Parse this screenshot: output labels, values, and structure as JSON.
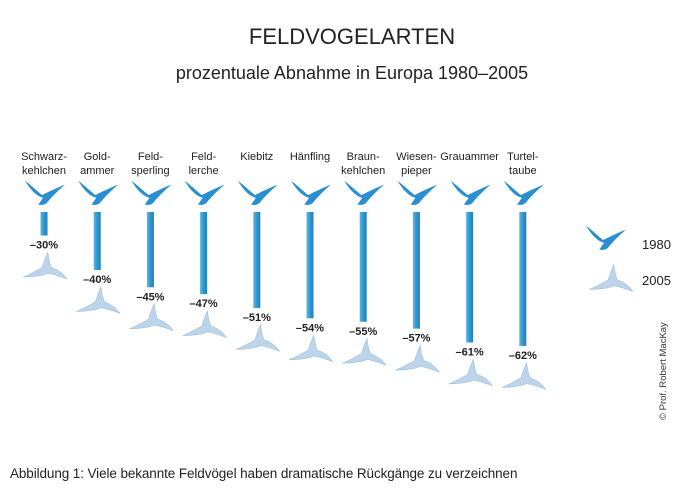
{
  "chart_data": {
    "type": "bar",
    "title": "FELDVOGELARTEN",
    "subtitle": "prozentuale Abnahme in Europa 1980–2005",
    "categories": [
      [
        "Schwarz-",
        "kehlchen"
      ],
      [
        "Gold-",
        "ammer"
      ],
      [
        "Feld-",
        "sperling"
      ],
      [
        "Feld-",
        "lerche"
      ],
      [
        "Kiebitz"
      ],
      [
        "Hänfling"
      ],
      [
        "Braun-",
        "kehlchen"
      ],
      [
        "Wiesen-",
        "pieper"
      ],
      [
        "Grauammer"
      ],
      [
        "Turtel-",
        "taube"
      ]
    ],
    "values": [
      -30,
      -40,
      -45,
      -47,
      -51,
      -54,
      -55,
      -57,
      -61,
      -62
    ],
    "value_labels": [
      "–30%",
      "–40%",
      "–45%",
      "–47%",
      "–51%",
      "–54%",
      "–55%",
      "–57%",
      "–61%",
      "–62%"
    ],
    "legend": {
      "start": "1980",
      "end": "2005",
      "placement": "right"
    },
    "colors": {
      "bar": "#2f97cf",
      "bird_1980": "#2a8fd0",
      "bird_2005": "#bcd5ea"
    }
  },
  "caption": "Abbildung 1: Viele bekannte Feldvögel haben dramatische Rückgänge zu verzeichnen",
  "credit": "© Prof. Robert MacKay"
}
